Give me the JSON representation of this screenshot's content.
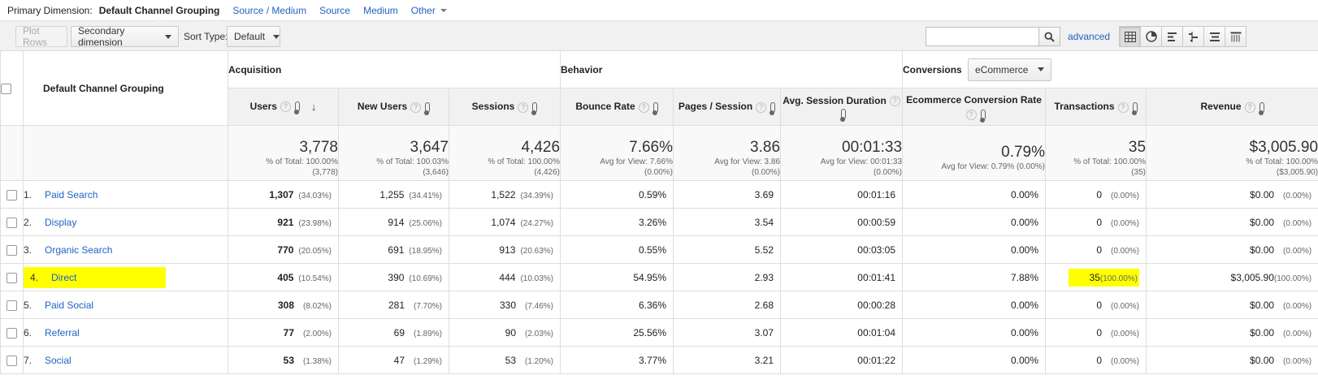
{
  "dimension_bar": {
    "label": "Primary Dimension:",
    "active": "Default Channel Grouping",
    "links": [
      "Source / Medium",
      "Source",
      "Medium"
    ],
    "other": "Other"
  },
  "toolbar": {
    "plot_rows": "Plot Rows",
    "secondary_dimension": "Secondary dimension",
    "sort_type_label": "Sort Type:",
    "sort_type_value": "Default",
    "search_value": "",
    "advanced": "advanced"
  },
  "table": {
    "dim_header": "Default Channel Grouping",
    "groups": {
      "acquisition": "Acquisition",
      "behavior": "Behavior",
      "conversions": "Conversions",
      "conversions_select": "eCommerce"
    },
    "columns": {
      "users": "Users",
      "new_users": "New Users",
      "sessions": "Sessions",
      "bounce_rate": "Bounce Rate",
      "pages_session": "Pages / Session",
      "avg_session_duration": "Avg. Session Duration",
      "ecom_conv_rate": "Ecommerce Conversion Rate",
      "transactions": "Transactions",
      "revenue": "Revenue"
    },
    "totals": {
      "users": {
        "value": "3,778",
        "l1": "% of Total: 100.00%",
        "l2": "(3,778)"
      },
      "new_users": {
        "value": "3,647",
        "l1": "% of Total: 100.03%",
        "l2": "(3,646)"
      },
      "sessions": {
        "value": "4,426",
        "l1": "% of Total: 100.00%",
        "l2": "(4,426)"
      },
      "bounce_rate": {
        "value": "7.66%",
        "l1": "Avg for View: 7.66%",
        "l2": "(0.00%)"
      },
      "pages_session": {
        "value": "3.86",
        "l1": "Avg for View: 3.86",
        "l2": "(0.00%)"
      },
      "avg_session_duration": {
        "value": "00:01:33",
        "l1": "Avg for View: 00:01:33",
        "l2": "(0.00%)"
      },
      "ecom_conv_rate": {
        "value": "0.79%",
        "l1": "Avg for View: 0.79% (0.00%)",
        "l2": ""
      },
      "transactions": {
        "value": "35",
        "l1": "% of Total: 100.00%",
        "l2": "(35)"
      },
      "revenue": {
        "value": "$3,005.90",
        "l1": "% of Total: 100.00%",
        "l2": "($3,005.90)"
      }
    },
    "rows": [
      {
        "idx": "1.",
        "name": "Paid Search",
        "users": "1,307",
        "users_pct": "(34.03%)",
        "new_users": "1,255",
        "new_users_pct": "(34.41%)",
        "sessions": "1,522",
        "sessions_pct": "(34.39%)",
        "bounce": "0.59%",
        "pps": "3.69",
        "dur": "00:01:16",
        "ecr": "0.00%",
        "tx": "0",
        "tx_pct": "(0.00%)",
        "rev": "$0.00",
        "rev_pct": "(0.00%)"
      },
      {
        "idx": "2.",
        "name": "Display",
        "users": "921",
        "users_pct": "(23.98%)",
        "new_users": "914",
        "new_users_pct": "(25.06%)",
        "sessions": "1,074",
        "sessions_pct": "(24.27%)",
        "bounce": "3.26%",
        "pps": "3.54",
        "dur": "00:00:59",
        "ecr": "0.00%",
        "tx": "0",
        "tx_pct": "(0.00%)",
        "rev": "$0.00",
        "rev_pct": "(0.00%)"
      },
      {
        "idx": "3.",
        "name": "Organic Search",
        "users": "770",
        "users_pct": "(20.05%)",
        "new_users": "691",
        "new_users_pct": "(18.95%)",
        "sessions": "913",
        "sessions_pct": "(20.63%)",
        "bounce": "0.55%",
        "pps": "5.52",
        "dur": "00:03:05",
        "ecr": "0.00%",
        "tx": "0",
        "tx_pct": "(0.00%)",
        "rev": "$0.00",
        "rev_pct": "(0.00%)"
      },
      {
        "idx": "4.",
        "name": "Direct",
        "users": "405",
        "users_pct": "(10.54%)",
        "new_users": "390",
        "new_users_pct": "(10.69%)",
        "sessions": "444",
        "sessions_pct": "(10.03%)",
        "bounce": "54.95%",
        "pps": "2.93",
        "dur": "00:01:41",
        "ecr": "7.88%",
        "tx": "35",
        "tx_pct": "(100.00%)",
        "rev": "$3,005.90",
        "rev_pct": "(100.00%)"
      },
      {
        "idx": "5.",
        "name": "Paid Social",
        "users": "308",
        "users_pct": "(8.02%)",
        "new_users": "281",
        "new_users_pct": "(7.70%)",
        "sessions": "330",
        "sessions_pct": "(7.46%)",
        "bounce": "6.36%",
        "pps": "2.68",
        "dur": "00:00:28",
        "ecr": "0.00%",
        "tx": "0",
        "tx_pct": "(0.00%)",
        "rev": "$0.00",
        "rev_pct": "(0.00%)"
      },
      {
        "idx": "6.",
        "name": "Referral",
        "users": "77",
        "users_pct": "(2.00%)",
        "new_users": "69",
        "new_users_pct": "(1.89%)",
        "sessions": "90",
        "sessions_pct": "(2.03%)",
        "bounce": "25.56%",
        "pps": "3.07",
        "dur": "00:01:04",
        "ecr": "0.00%",
        "tx": "0",
        "tx_pct": "(0.00%)",
        "rev": "$0.00",
        "rev_pct": "(0.00%)"
      },
      {
        "idx": "7.",
        "name": "Social",
        "users": "53",
        "users_pct": "(1.38%)",
        "new_users": "47",
        "new_users_pct": "(1.29%)",
        "sessions": "53",
        "sessions_pct": "(1.20%)",
        "bounce": "3.77%",
        "pps": "3.21",
        "dur": "00:01:22",
        "ecr": "0.00%",
        "tx": "0",
        "tx_pct": "(0.00%)",
        "rev": "$0.00",
        "rev_pct": "(0.00%)"
      }
    ],
    "highlight_color": "#ffff00"
  },
  "icons": [
    "search-icon",
    "table-view-icon",
    "pie-view-icon",
    "bar-view-icon",
    "comparison-view-icon",
    "term-cloud-view-icon",
    "pivot-view-icon",
    "help-icon",
    "thermometer-icon",
    "sort-desc-icon"
  ]
}
